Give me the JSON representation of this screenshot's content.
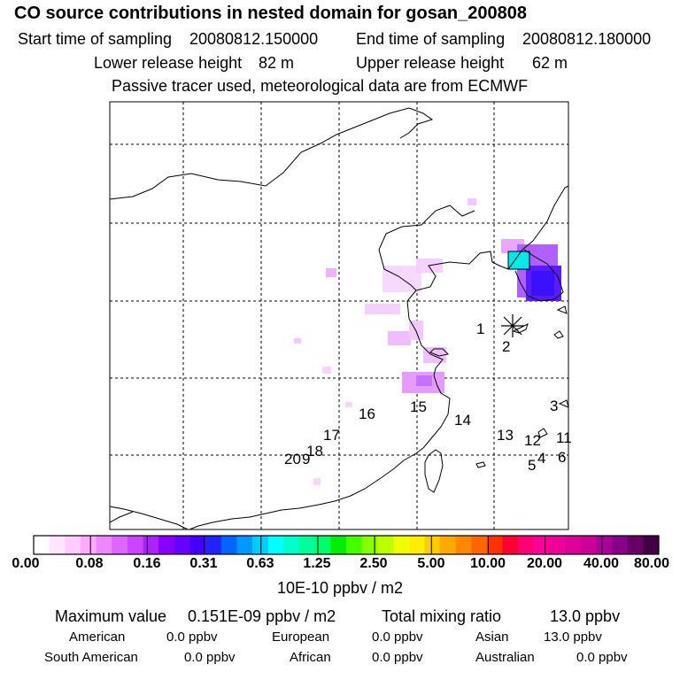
{
  "title": "CO  source contributions in nested domain for gosan_200808",
  "header": {
    "start_label": "Start time of sampling",
    "start_value": "20080812.150000",
    "end_label": "End time of sampling",
    "end_value": "20080812.180000",
    "lower_label": "Lower release height",
    "lower_value": "82 m",
    "upper_label": "Upper release height",
    "upper_value": "62 m",
    "tracer_note": "Passive tracer used, meteorological data are from ECMWF"
  },
  "map": {
    "station_labels": [
      "1",
      "2",
      "3",
      "4",
      "5",
      "6",
      "11",
      "12",
      "13",
      "14",
      "15",
      "16",
      "17",
      "18",
      "20",
      "9"
    ],
    "receptor_icon": "star-marker"
  },
  "colorbar": {
    "colors": [
      "#ffffff",
      "#ffe6ff",
      "#ffccff",
      "#ffaaff",
      "#ee88ff",
      "#dd66ff",
      "#cc44ff",
      "#aa22ff",
      "#8800ff",
      "#6600ff",
      "#4400ff",
      "#2222ff",
      "#0066ff",
      "#0099ff",
      "#00ccff",
      "#00ffff",
      "#00ffcc",
      "#00ff99",
      "#00ff66",
      "#00ee00",
      "#44ff00",
      "#88ff00",
      "#bbff00",
      "#eeff00",
      "#ffee00",
      "#ffcc00",
      "#ffaa00",
      "#ff8800",
      "#ff6600",
      "#ff3300",
      "#ff0033",
      "#ff0077",
      "#ff0099",
      "#ee0099",
      "#dd0099",
      "#cc0099",
      "#aa0099",
      "#880088",
      "#660066",
      "#440044"
    ],
    "ticks": [
      "0.00",
      "0.08",
      "0.16",
      "0.31",
      "0.63",
      "1.25",
      "2.50",
      "5.00",
      "10.00",
      "20.00",
      "40.00",
      "80.00"
    ],
    "unit": "10E-10 ppbv / m2"
  },
  "summary": {
    "max_label": "Maximum value",
    "max_value": "0.151E-09 ppbv / m2",
    "total_label": "Total mixing ratio",
    "total_value": "13.0 ppbv",
    "regions": [
      {
        "name": "American",
        "value": "0.0 ppbv"
      },
      {
        "name": "European",
        "value": "0.0 ppbv"
      },
      {
        "name": "Asian",
        "value": "13.0 ppbv"
      },
      {
        "name": "South American",
        "value": "0.0 ppbv"
      },
      {
        "name": "African",
        "value": "0.0 ppbv"
      },
      {
        "name": "Australian",
        "value": "0.0 ppbv"
      }
    ]
  }
}
